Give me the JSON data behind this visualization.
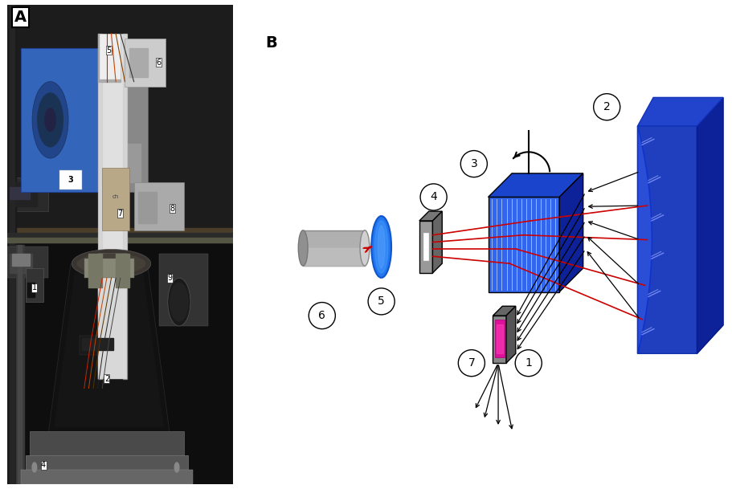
{
  "fig_width": 9.12,
  "fig_height": 6.09,
  "bg_color": "#ffffff",
  "panel_A_label": "A",
  "panel_B_label": "B",
  "label_fontsize": 14,
  "number_fontsize": 10,
  "mirror_blue_front": "#1133cc",
  "mirror_blue_top": "#2244dd",
  "mirror_blue_side": "#0022aa",
  "grating_blue_front": "#3355ee",
  "grating_blue_top": "#1133cc",
  "grating_blue_side": "#0022aa",
  "lens_blue": "#4488ff",
  "detector_pink": "#dd1199",
  "tube_gray": "#aaaaaa",
  "slit_gray": "#999999",
  "red_line": "#cc0000",
  "black_line": "#000000",
  "photo_dark": "#111111",
  "photo_mid": "#333333",
  "blue_box": "#3366bb",
  "white_tube": "#dddddd"
}
